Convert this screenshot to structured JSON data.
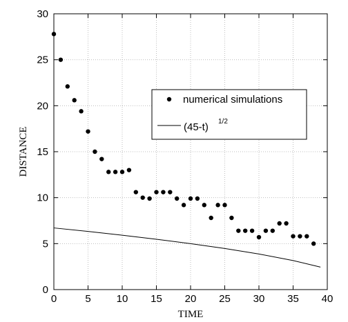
{
  "chart_data": {
    "type": "scatter",
    "xlabel": "TIME",
    "ylabel": "DISTANCE",
    "xlim": [
      0,
      40
    ],
    "ylim": [
      0,
      30
    ],
    "xticks": [
      0,
      5,
      10,
      15,
      20,
      25,
      30,
      35,
      40
    ],
    "yticks": [
      0,
      5,
      10,
      15,
      20,
      25,
      30
    ],
    "grid": true,
    "legend_position": "right-middle",
    "series": [
      {
        "name": "numerical simulations",
        "kind": "points",
        "color": "#000000",
        "x": [
          0,
          1,
          2,
          3,
          4,
          5,
          6,
          7,
          8,
          9,
          10,
          11,
          12,
          13,
          14,
          15,
          16,
          17,
          18,
          19,
          20,
          21,
          22,
          23,
          24,
          25,
          26,
          27,
          28,
          29,
          30,
          31,
          32,
          33,
          34,
          35,
          36,
          37,
          38
        ],
        "y": [
          27.8,
          25.0,
          22.1,
          20.6,
          19.4,
          17.2,
          15.0,
          14.2,
          12.8,
          12.8,
          12.8,
          13.0,
          10.6,
          10.0,
          9.9,
          10.6,
          10.6,
          10.6,
          9.9,
          9.2,
          9.9,
          9.9,
          9.2,
          7.8,
          9.2,
          9.2,
          7.8,
          6.4,
          6.4,
          6.4,
          5.7,
          6.4,
          6.4,
          7.2,
          7.2,
          5.8,
          5.8,
          5.8,
          5.0
        ]
      },
      {
        "name_main": "(45-t)",
        "name_exponent": "1/2",
        "kind": "line",
        "color": "#000000",
        "formula": "sqrt(45 - t)",
        "x": [
          0,
          5,
          10,
          15,
          20,
          25,
          30,
          35,
          39
        ],
        "y": [
          6.708,
          6.325,
          5.916,
          5.477,
          5.0,
          4.472,
          3.873,
          3.162,
          2.449
        ]
      }
    ]
  }
}
